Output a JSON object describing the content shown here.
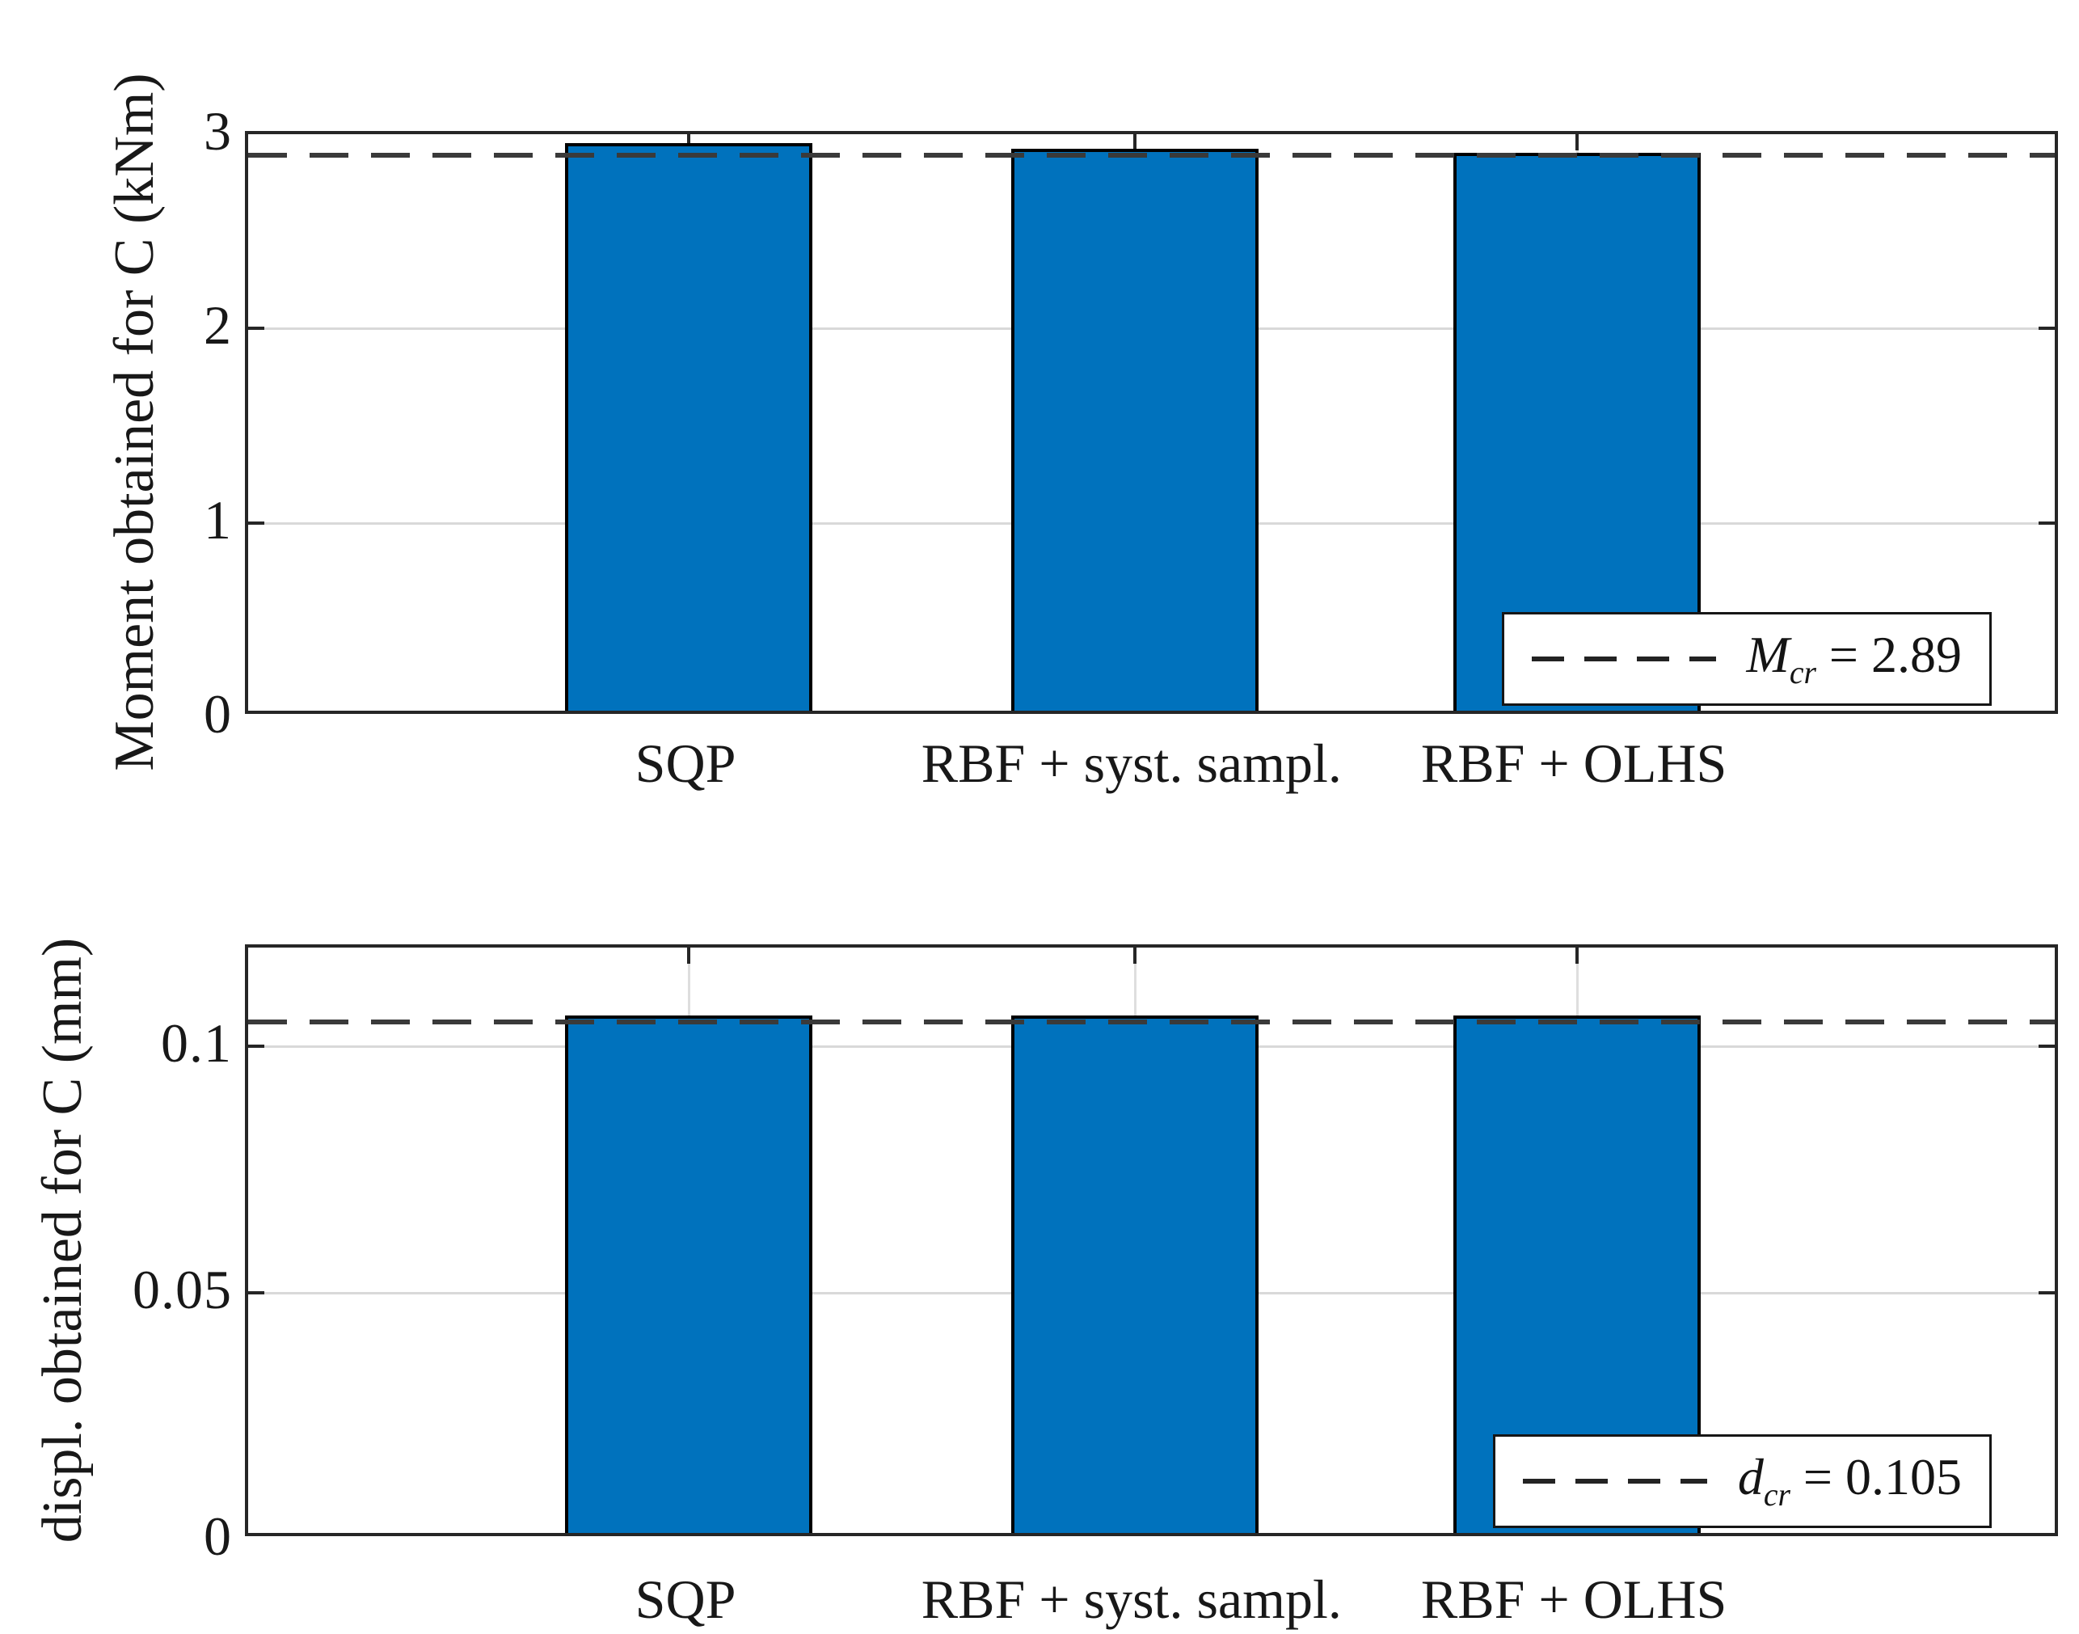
{
  "figure_background": "#ffffff",
  "chart_data": [
    {
      "type": "bar",
      "title": "",
      "ylabel": "Moment obtained for C (kNm)",
      "xlabel": "",
      "categories": [
        "SQP",
        "RBF + syst. sampl.",
        "RBF + OLHS"
      ],
      "values": [
        2.92,
        2.89,
        2.87
      ],
      "ylim": [
        0,
        3
      ],
      "yticks": [
        0,
        1,
        2,
        3
      ],
      "ytick_labels": [
        "0",
        "1",
        "2",
        "3"
      ],
      "grid": true,
      "bar_color": "#0072BD",
      "bar_edge_color": "#000000",
      "reference_line": {
        "value": 2.89,
        "style": "dashed",
        "color": "#3a3a3a"
      },
      "legend": {
        "position": "southeast",
        "var": "M",
        "sub": "cr",
        "rest": " = 2.89"
      }
    },
    {
      "type": "bar",
      "title": "",
      "ylabel": "displ. obtained for C (mm)",
      "xlabel": "",
      "categories": [
        "SQP",
        "RBF + syst. sampl.",
        "RBF + OLHS"
      ],
      "values": [
        0.105,
        0.105,
        0.105
      ],
      "ylim": [
        0,
        0.12
      ],
      "yticks": [
        0,
        0.05,
        0.1
      ],
      "ytick_labels": [
        "0",
        "0.05",
        "0.1"
      ],
      "grid": true,
      "bar_color": "#0072BD",
      "bar_edge_color": "#000000",
      "reference_line": {
        "value": 0.105,
        "style": "dashed",
        "color": "#3a3a3a"
      },
      "legend": {
        "position": "southeast",
        "var": "d",
        "sub": "cr",
        "rest": " = 0.105"
      }
    }
  ]
}
